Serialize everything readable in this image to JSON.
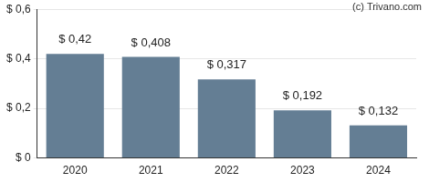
{
  "chart_data": {
    "type": "bar",
    "annotations": [
      "(c) Trivano.com"
    ],
    "categories": [
      "2020",
      "2021",
      "2022",
      "2023",
      "2024"
    ],
    "values": [
      0.42,
      0.408,
      0.317,
      0.192,
      0.132
    ],
    "value_labels": [
      "$ 0,42",
      "$ 0,408",
      "$ 0,317",
      "$ 0,192",
      "$ 0,132"
    ],
    "data_labels": true,
    "color": "#647e94",
    "ylim": [
      0,
      0.6
    ],
    "yticks": [
      {
        "value": 0,
        "label": "$ 0"
      },
      {
        "value": 0.2,
        "label": "$ 0,2"
      },
      {
        "value": 0.4,
        "label": "$ 0,4"
      },
      {
        "value": 0.6,
        "label": "$ 0,6"
      }
    ],
    "grid": true
  }
}
